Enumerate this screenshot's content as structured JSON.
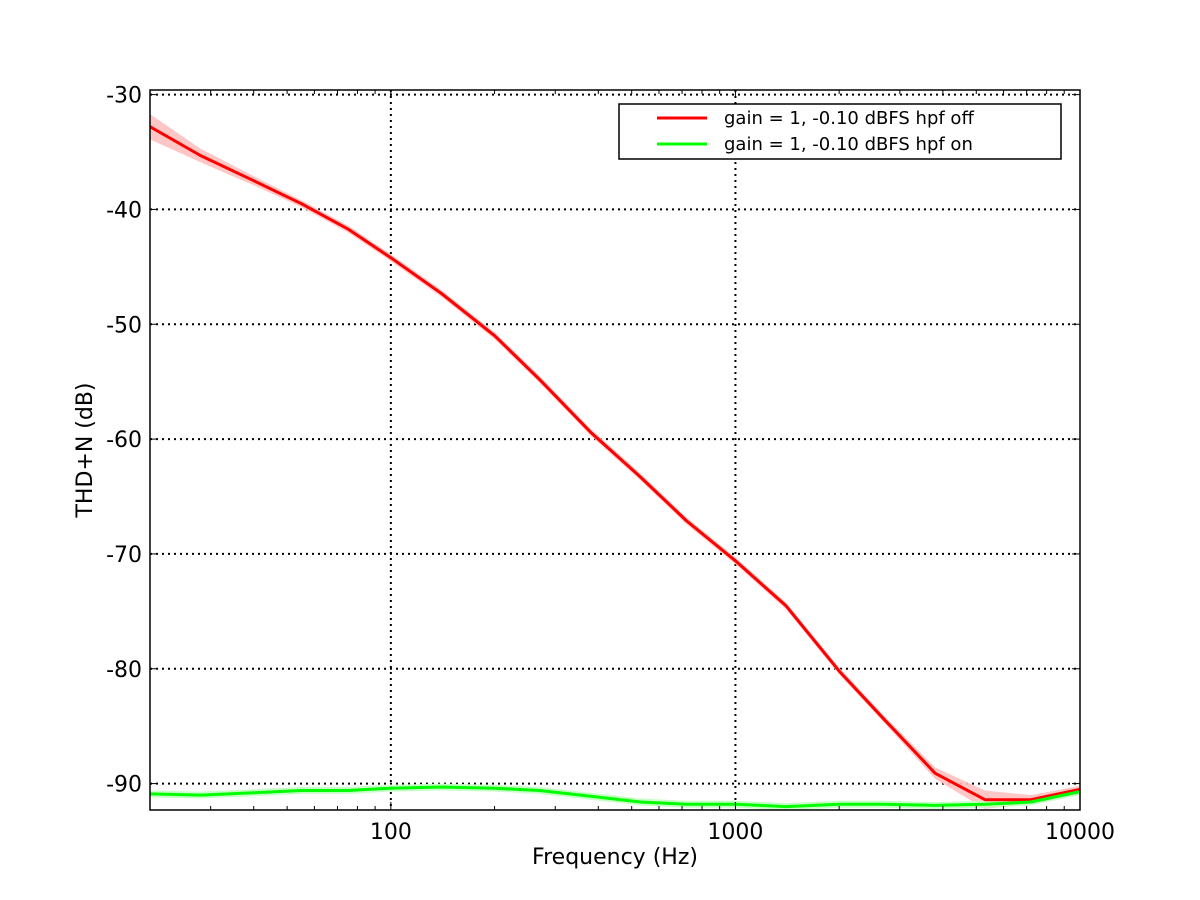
{
  "chart_data": {
    "type": "line",
    "xlabel": "Frequency (Hz)",
    "ylabel": "THD+N (dB)",
    "x_scale": "log",
    "xlim": [
      20,
      10000
    ],
    "ylim": [
      -92.3,
      -29.6
    ],
    "x_ticks": [
      {
        "value": 100,
        "label": "100"
      },
      {
        "value": 1000,
        "label": "1000"
      },
      {
        "value": 10000,
        "label": "10000"
      }
    ],
    "y_ticks": [
      {
        "value": -30,
        "label": "-30"
      },
      {
        "value": -40,
        "label": "-40"
      },
      {
        "value": -50,
        "label": "-50"
      },
      {
        "value": -60,
        "label": "-60"
      },
      {
        "value": -70,
        "label": "-70"
      },
      {
        "value": -80,
        "label": "-80"
      },
      {
        "value": -90,
        "label": "-90"
      }
    ],
    "grid": true,
    "legend_position": "top-right",
    "series": [
      {
        "name": "gain = 1, -0.10 dBFS  hpf off",
        "color": "#ff0000",
        "band_color": "#ffc0c0",
        "x": [
          20,
          28,
          40,
          55,
          75,
          100,
          140,
          200,
          270,
          380,
          530,
          720,
          1000,
          1400,
          2000,
          2700,
          3800,
          5300,
          7200,
          10000
        ],
        "y": [
          -32.8,
          -35.3,
          -37.5,
          -39.5,
          -41.7,
          -44.2,
          -47.3,
          -51.0,
          -54.8,
          -59.4,
          -63.3,
          -67.1,
          -70.6,
          -74.5,
          -80.2,
          -84.4,
          -89.1,
          -91.4,
          -91.4,
          -90.5
        ],
        "band": [
          1.1,
          0.6,
          0.4,
          0.3,
          0.3,
          0.3,
          0.3,
          0.3,
          0.3,
          0.3,
          0.3,
          0.3,
          0.3,
          0.3,
          0.3,
          0.3,
          0.5,
          0.8,
          0.4,
          0.3
        ]
      },
      {
        "name": "gain = 1, -0.10 dBFS  hpf on",
        "color": "#00ff00",
        "band_color": "#c0ffc0",
        "x": [
          20,
          28,
          40,
          55,
          75,
          100,
          140,
          200,
          270,
          380,
          530,
          720,
          1000,
          1400,
          2000,
          2700,
          3800,
          5300,
          7200,
          10000
        ],
        "y": [
          -90.9,
          -91.0,
          -90.8,
          -90.6,
          -90.6,
          -90.4,
          -90.3,
          -90.4,
          -90.6,
          -91.1,
          -91.6,
          -91.8,
          -91.8,
          -92.0,
          -91.8,
          -91.8,
          -91.9,
          -91.8,
          -91.6,
          -90.7
        ],
        "band": [
          0.3,
          0.3,
          0.3,
          0.3,
          0.3,
          0.3,
          0.3,
          0.3,
          0.3,
          0.3,
          0.3,
          0.3,
          0.3,
          0.3,
          0.3,
          0.3,
          0.3,
          0.3,
          0.3,
          0.3
        ]
      }
    ]
  }
}
